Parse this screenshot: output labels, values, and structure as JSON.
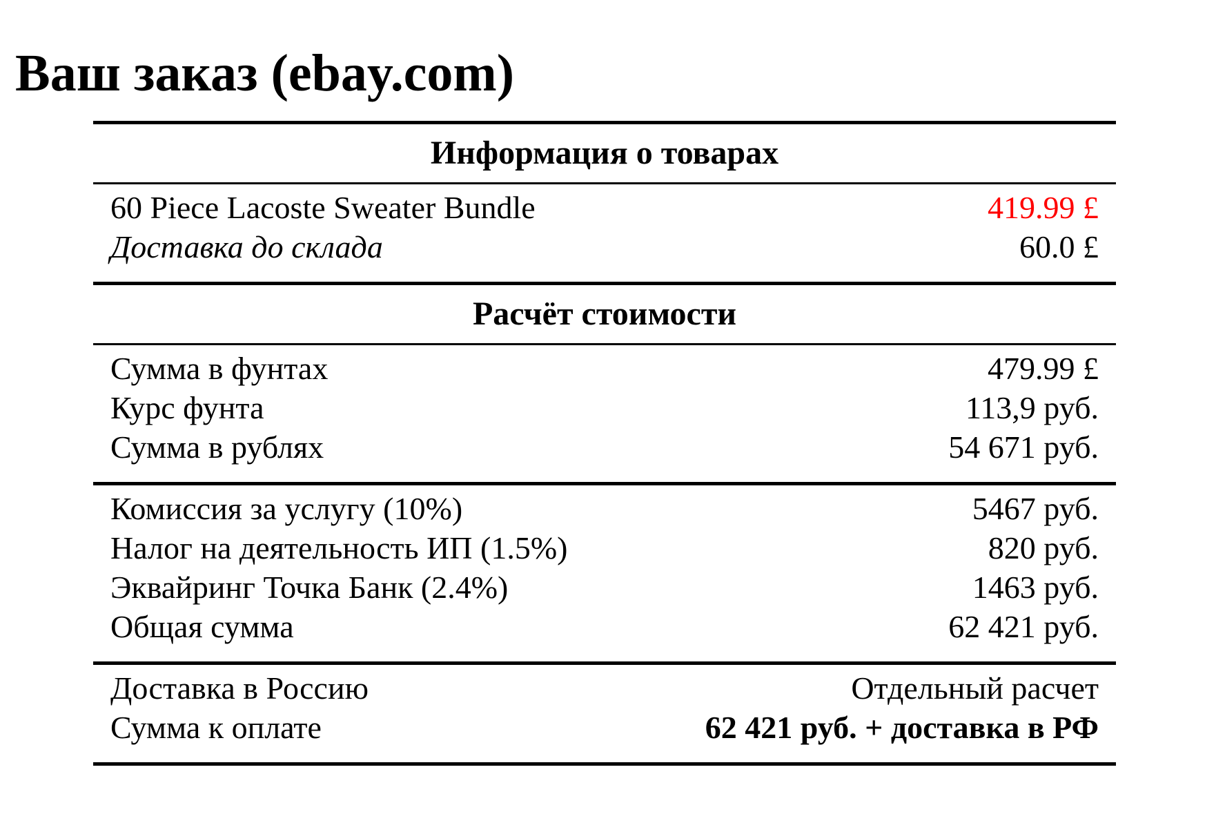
{
  "page_title": "Ваш заказ (ebay.com)",
  "colors": {
    "text": "#000000",
    "background": "#ffffff",
    "highlight_price": "#ff0000"
  },
  "table": {
    "sections": [
      {
        "header": "Информация о товарах",
        "rows": [
          {
            "label": "60 Piece Lacoste Sweater Bundle",
            "value": "419.99 £"
          },
          {
            "label": "Доставка до склада",
            "value": "60.0 £"
          }
        ]
      },
      {
        "header": "Расчёт стоимости",
        "rows": [
          {
            "label": "Сумма в фунтах",
            "value": "479.99 £"
          },
          {
            "label": "Курс фунта",
            "value": "113,9 руб."
          },
          {
            "label": "Сумма в рублях",
            "value": "54 671 руб."
          }
        ]
      },
      {
        "rows": [
          {
            "label": "Комиссия за услугу (10%)",
            "value": "5467 руб."
          },
          {
            "label": "Налог на деятельность ИП (1.5%)",
            "value": "820 руб."
          },
          {
            "label": "Эквайринг Точка Банк (2.4%)",
            "value": "1463 руб."
          },
          {
            "label": "Общая сумма",
            "value": "62 421 руб."
          }
        ]
      },
      {
        "rows": [
          {
            "label": "Доставка в Россию",
            "value": "Отдельный расчет"
          },
          {
            "label": "Сумма к оплате",
            "value": "62 421 руб. + доставка в РФ"
          }
        ]
      }
    ]
  }
}
